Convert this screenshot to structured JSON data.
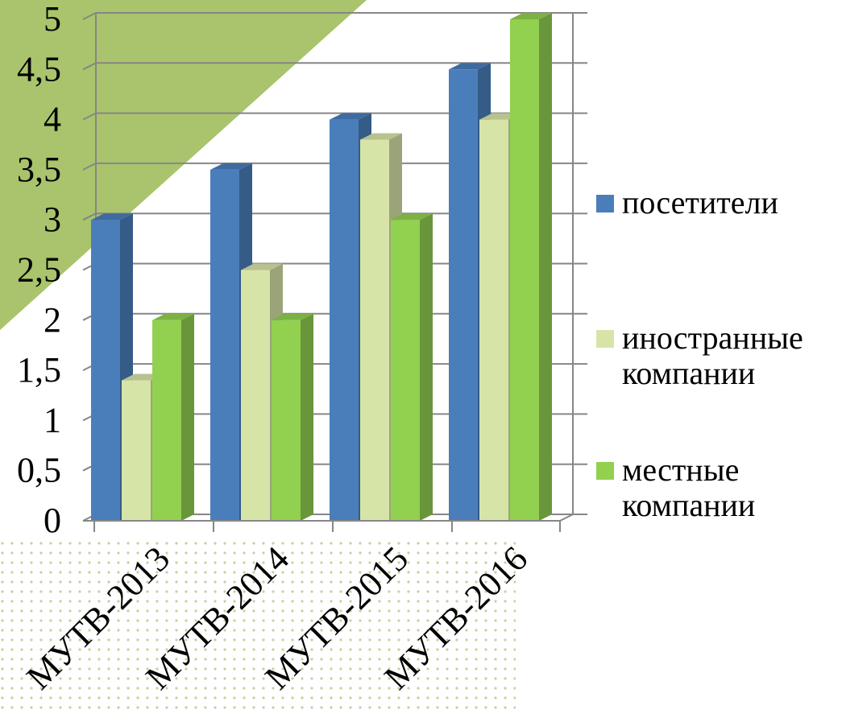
{
  "chart_data": {
    "type": "bar",
    "categories": [
      "МУТВ-2013",
      "МУТВ-2014",
      "МУТВ-2015",
      "МУТВ-2016"
    ],
    "series": [
      {
        "name": "посетители",
        "values": [
          3,
          3.5,
          4,
          4.5
        ],
        "color": "#4a7ebb"
      },
      {
        "name": "иностранные компании",
        "values": [
          1.4,
          2.5,
          3.8,
          4
        ],
        "color": "#d7e4a8"
      },
      {
        "name": "местные компании",
        "values": [
          2,
          2,
          3,
          5
        ],
        "color": "#92d050"
      }
    ],
    "ylim": [
      0,
      5
    ],
    "yticks": [
      "0",
      "0,5",
      "1",
      "1,5",
      "2",
      "2,5",
      "3",
      "3,5",
      "4",
      "4,5",
      "5"
    ],
    "grid": true,
    "legend_position": "right",
    "title": "",
    "xlabel": "",
    "ylabel": ""
  },
  "decor": {
    "triangle_color": "#a9c46c",
    "dots_color": "#c9cfa0"
  }
}
